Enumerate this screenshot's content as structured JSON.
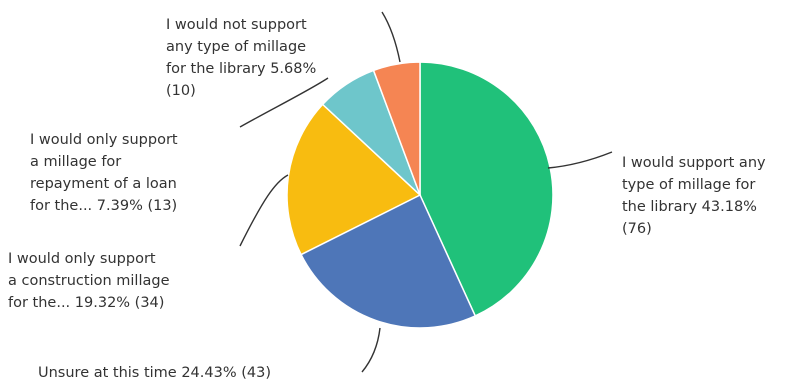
{
  "chart_data": {
    "type": "pie",
    "title": "",
    "slices": [
      {
        "label": "I would support any type of millage for the library",
        "percent": 43.18,
        "count": 76,
        "color": "#20C17A",
        "text_lines": [
          "I would support any",
          "type of millage for",
          "the library 43.18%",
          "(76)"
        ]
      },
      {
        "label": "Unsure at this time",
        "percent": 24.43,
        "count": 43,
        "color": "#4E76B8",
        "text_lines": [
          "Unsure at this time 24.43% (43)"
        ]
      },
      {
        "label": "I would only support a construction millage for the...",
        "percent": 19.32,
        "count": 34,
        "color": "#F8BC10",
        "text_lines": [
          "I would only support",
          "a construction millage",
          "for the... 19.32% (34)"
        ]
      },
      {
        "label": "I would only support a millage for repayment of a loan for the...",
        "percent": 7.39,
        "count": 13,
        "color": "#6EC6CB",
        "text_lines": [
          "I would only support",
          "a millage for",
          "repayment of a loan",
          "for the... 7.39% (13)"
        ]
      },
      {
        "label": "I would not support any type of millage for the library",
        "percent": 5.68,
        "count": 10,
        "color": "#F58553",
        "text_lines": [
          "I would not support",
          "any type of millage",
          "for the library 5.68%",
          "(10)"
        ]
      }
    ]
  }
}
